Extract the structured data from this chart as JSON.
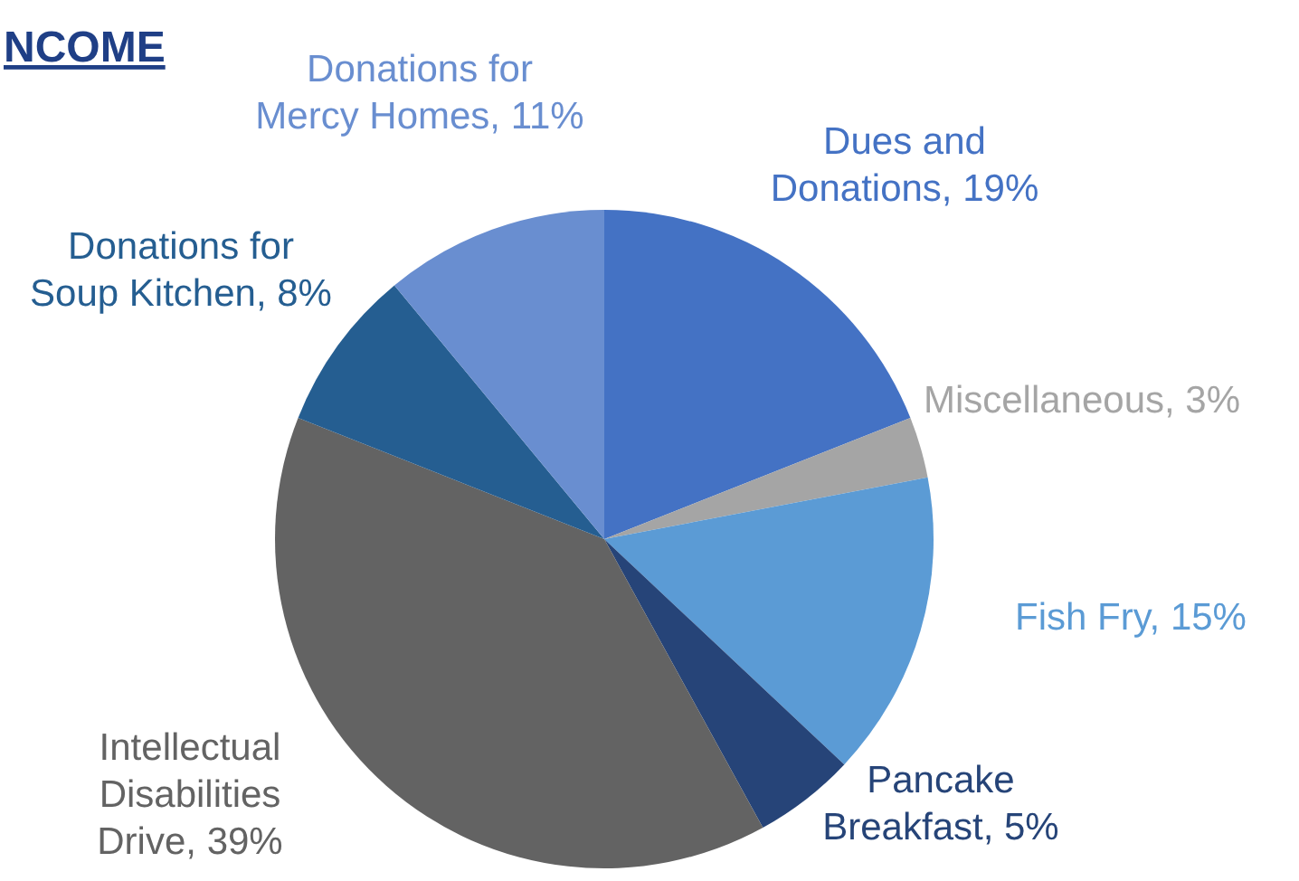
{
  "chart_data": {
    "type": "pie",
    "title": "NCOME",
    "categories": [
      "Dues and Donations",
      "Miscellaneous",
      "Fish Fry",
      "Pancake Breakfast",
      "Intellectual Disabilities Drive",
      "Donations for Soup Kitchen",
      "Donations for Mercy Homes"
    ],
    "values": [
      19,
      3,
      15,
      5,
      39,
      8,
      11
    ],
    "value_labels": [
      "19%",
      "3%",
      "15%",
      "5%",
      "39%",
      "8%",
      "11%"
    ],
    "colors": [
      "#4472c4",
      "#a5a5a5",
      "#5b9bd5",
      "#264478",
      "#636363",
      "#255e91",
      "#698ed0"
    ]
  }
}
